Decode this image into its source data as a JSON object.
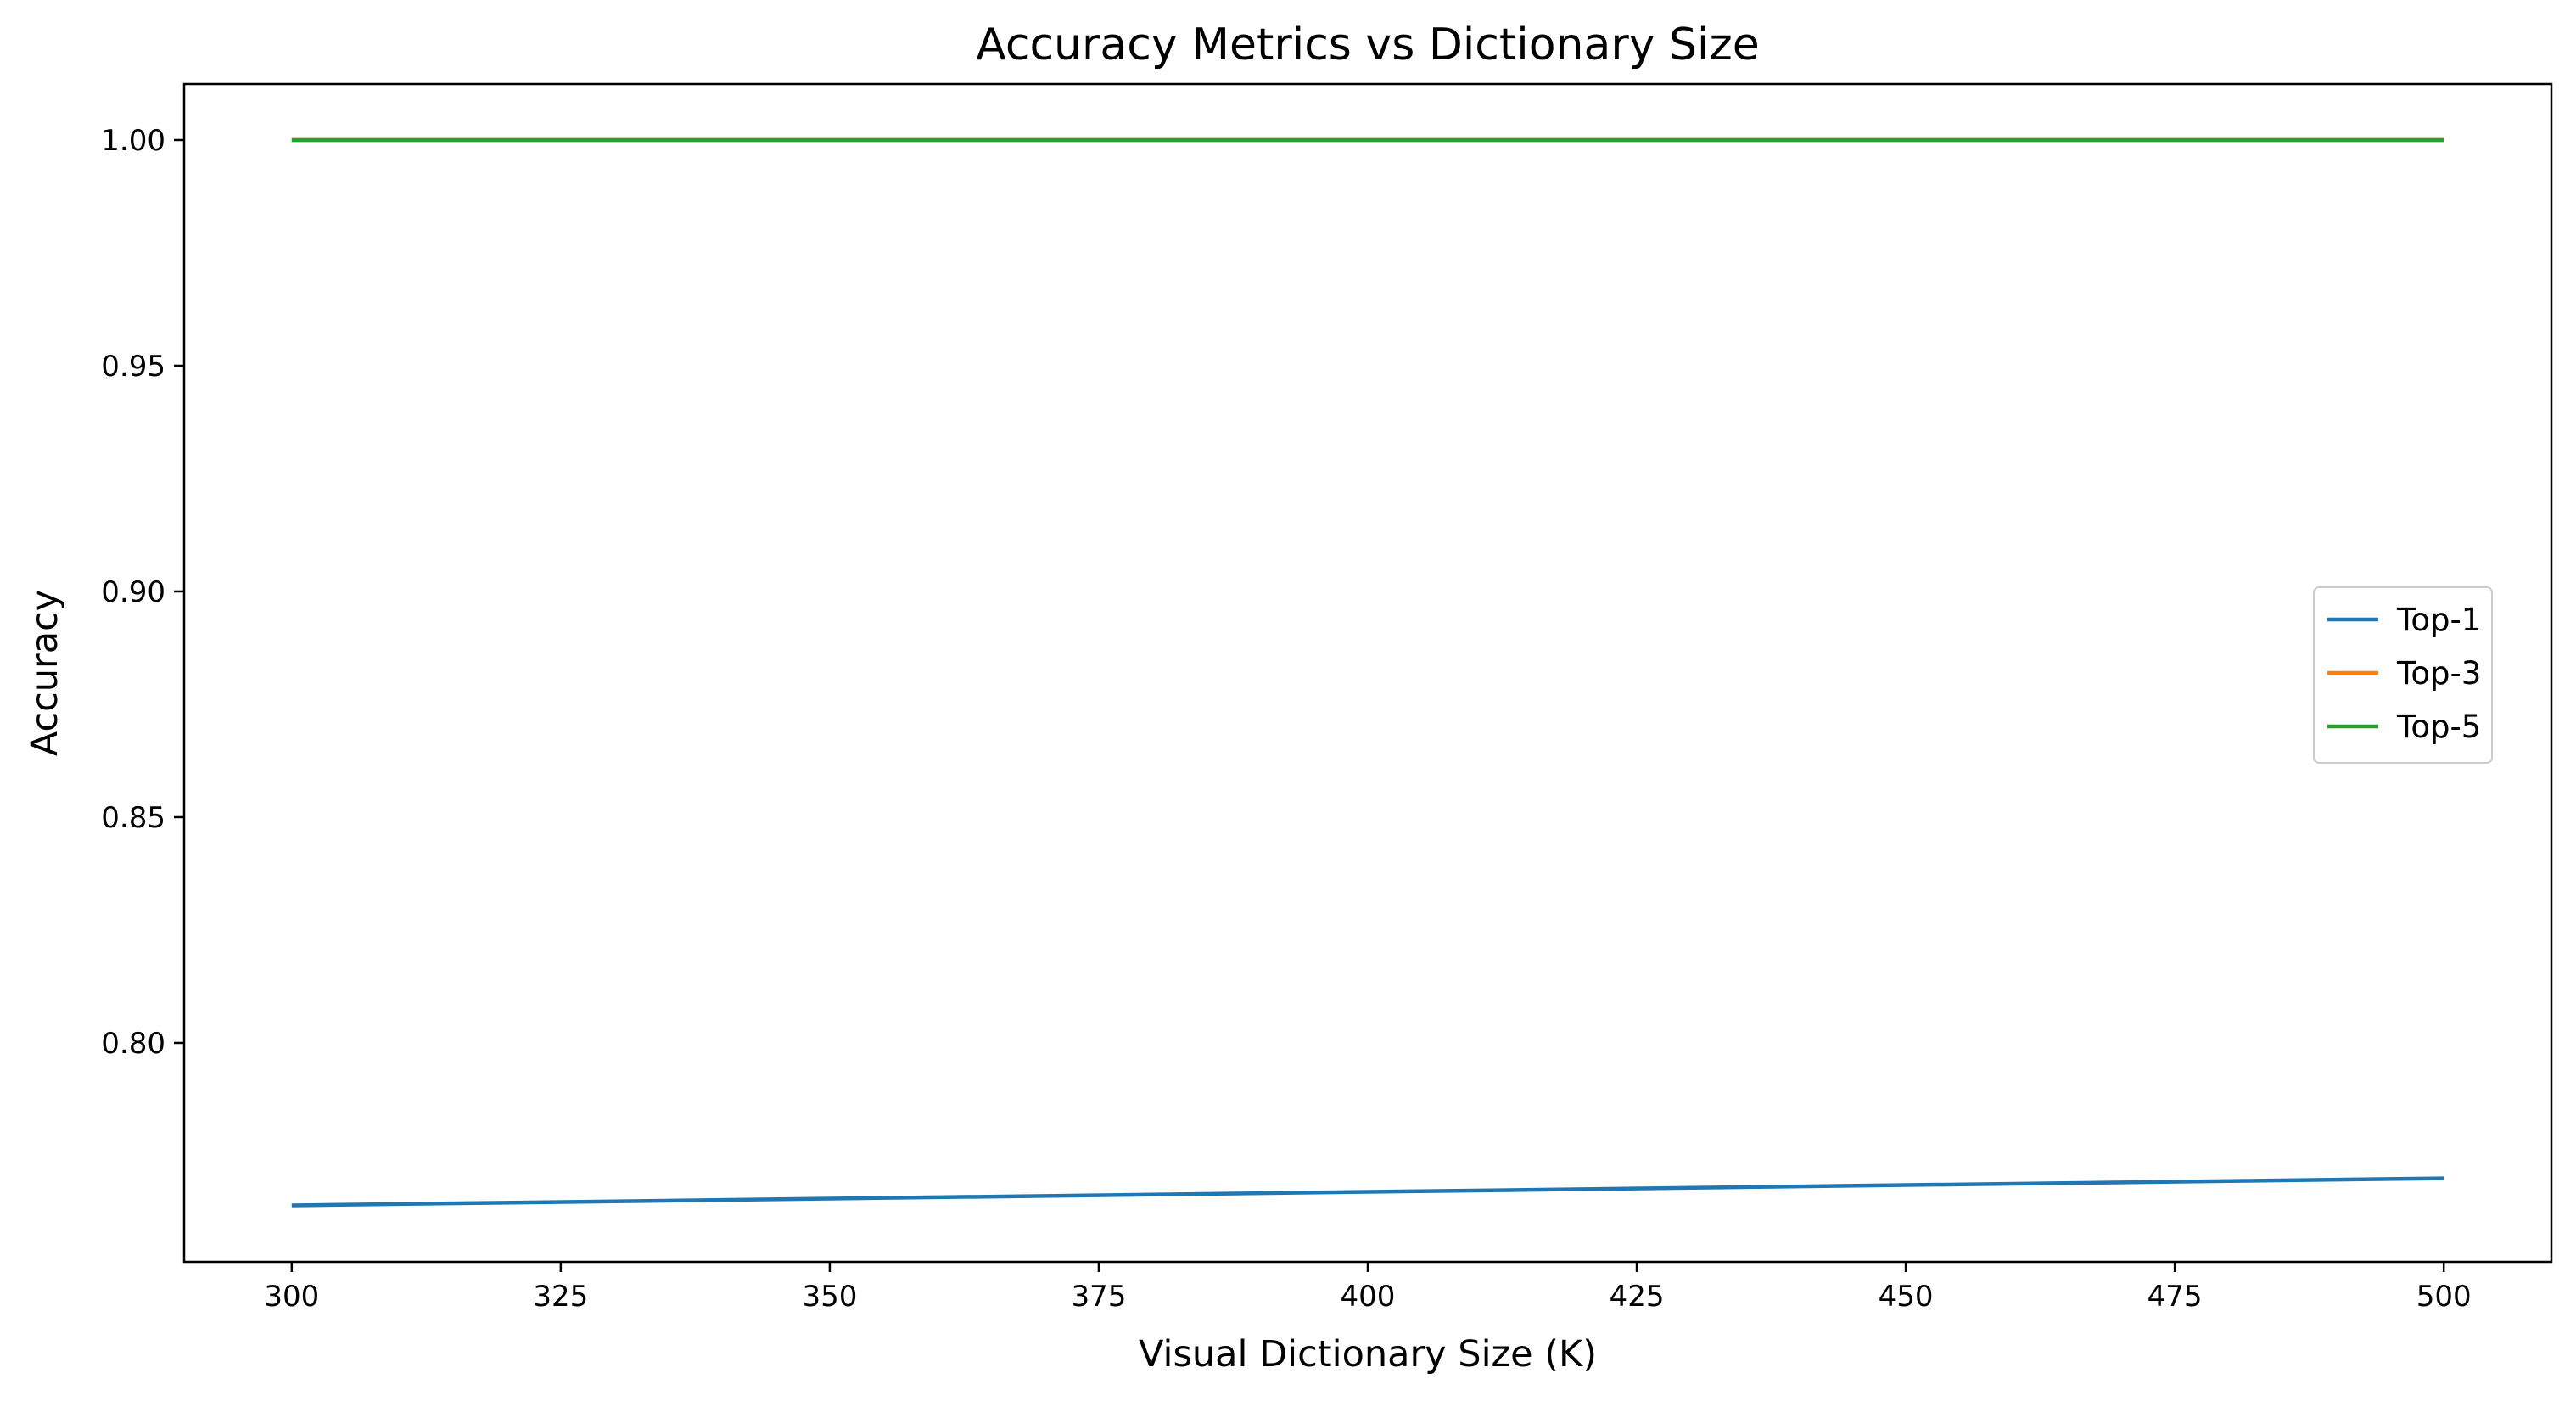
{
  "chart_data": {
    "type": "line",
    "title": "Accuracy Metrics vs Dictionary Size",
    "xlabel": "Visual Dictionary Size (K)",
    "ylabel": "Accuracy",
    "x": [
      300,
      500
    ],
    "xlim": [
      290,
      510
    ],
    "ylim": [
      0.7515,
      1.0124
    ],
    "xticks": [
      300,
      325,
      350,
      375,
      400,
      425,
      450,
      475,
      500
    ],
    "xtick_labels": [
      "300",
      "325",
      "350",
      "375",
      "400",
      "425",
      "450",
      "475",
      "500"
    ],
    "yticks": [
      0.8,
      0.85,
      0.9,
      0.95,
      1.0
    ],
    "ytick_labels": [
      "0.80",
      "0.85",
      "0.90",
      "0.95",
      "1.00"
    ],
    "grid": false,
    "legend_position": "center-right",
    "series": [
      {
        "name": "Top-1",
        "color": "#1f77b4",
        "values": [
          0.764,
          0.77
        ]
      },
      {
        "name": "Top-3",
        "color": "#ff7f0e",
        "values": [
          1.0,
          1.0
        ]
      },
      {
        "name": "Top-5",
        "color": "#2ca02c",
        "values": [
          1.0,
          1.0
        ]
      }
    ]
  }
}
